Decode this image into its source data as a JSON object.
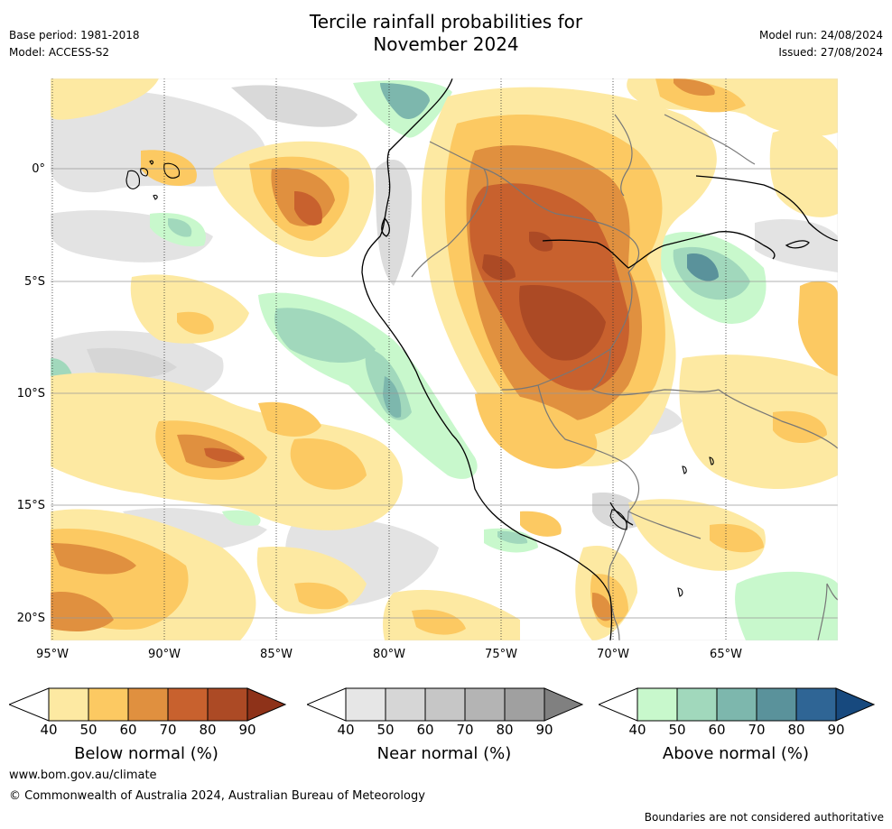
{
  "header": {
    "title_line1": "Tercile rainfall probabilities for",
    "title_line2": "November 2024",
    "base_period": "Base period: 1981-2018",
    "model": "Model: ACCESS-S2",
    "model_run": "Model run: 24/08/2024",
    "issued": "Issued: 27/08/2024"
  },
  "map": {
    "lat_labels": [
      "0°",
      "5°S",
      "10°S",
      "15°S",
      "20°S"
    ],
    "lon_labels": [
      "95°W",
      "90°W",
      "85°W",
      "80°W",
      "75°W",
      "70°W",
      "65°W"
    ]
  },
  "legends": [
    {
      "title": "Below normal (%)",
      "ticks": [
        "40",
        "50",
        "60",
        "70",
        "80",
        "90"
      ],
      "colors": [
        "#ffffff",
        "#fde9a2",
        "#fcc962",
        "#e0903f",
        "#c8612e",
        "#ac4a25",
        "#8e3219"
      ]
    },
    {
      "title": "Near normal (%)",
      "ticks": [
        "40",
        "50",
        "60",
        "70",
        "80",
        "90"
      ],
      "colors": [
        "#ffffff",
        "#e6e6e6",
        "#d6d6d6",
        "#c6c6c6",
        "#b4b4b4",
        "#a0a0a0",
        "#808080"
      ]
    },
    {
      "title": "Above normal (%)",
      "ticks": [
        "40",
        "50",
        "60",
        "70",
        "80",
        "90"
      ],
      "colors": [
        "#ffffff",
        "#c8f8cc",
        "#a1d8bc",
        "#7db7ad",
        "#5a929b",
        "#2f6595",
        "#17497e"
      ]
    }
  ],
  "footer": {
    "website": "www.bom.gov.au/climate",
    "copyright": "© Commonwealth of Australia 2024, Australian Bureau of Meteorology",
    "disclaimer": "Boundaries are not considered authoritative"
  }
}
